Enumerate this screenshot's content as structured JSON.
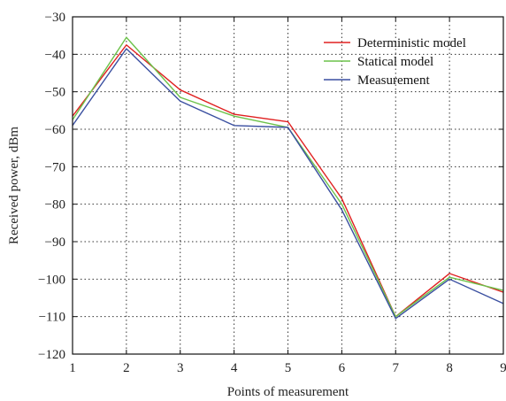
{
  "chart_data": {
    "type": "line",
    "xlabel": "Points of measurement",
    "ylabel": "Received power, dBm",
    "xlim": [
      1,
      9
    ],
    "ylim": [
      -120,
      -30
    ],
    "xticks": [
      1,
      2,
      3,
      4,
      5,
      6,
      7,
      8,
      9
    ],
    "yticks": [
      -30,
      -40,
      -50,
      -60,
      -70,
      -80,
      -90,
      -100,
      -110,
      -120
    ],
    "ytick_labels": [
      "−30",
      "−40",
      "−50",
      "−60",
      "−70",
      "−80",
      "−90",
      "−100",
      "−110",
      "−120"
    ],
    "grid": true,
    "legend_position": "top-right",
    "x": [
      1,
      2,
      3,
      4,
      5,
      6,
      7,
      8,
      9
    ],
    "series": [
      {
        "name": "Deterministic model",
        "color": "#e02020",
        "values": [
          -56.5,
          -37.5,
          -49.5,
          -56,
          -58,
          -78.5,
          -110,
          -98.5,
          -103.5
        ]
      },
      {
        "name": "Statical model",
        "color": "#6cc24a",
        "values": [
          -57.5,
          -35.5,
          -51.5,
          -56.5,
          -59.5,
          -80,
          -110,
          -99.5,
          -103
        ]
      },
      {
        "name": "Measurement",
        "color": "#3a4fa0",
        "values": [
          -59,
          -38.5,
          -52.5,
          -59,
          -59.5,
          -81.5,
          -110.5,
          -100,
          -106.5
        ]
      }
    ]
  }
}
